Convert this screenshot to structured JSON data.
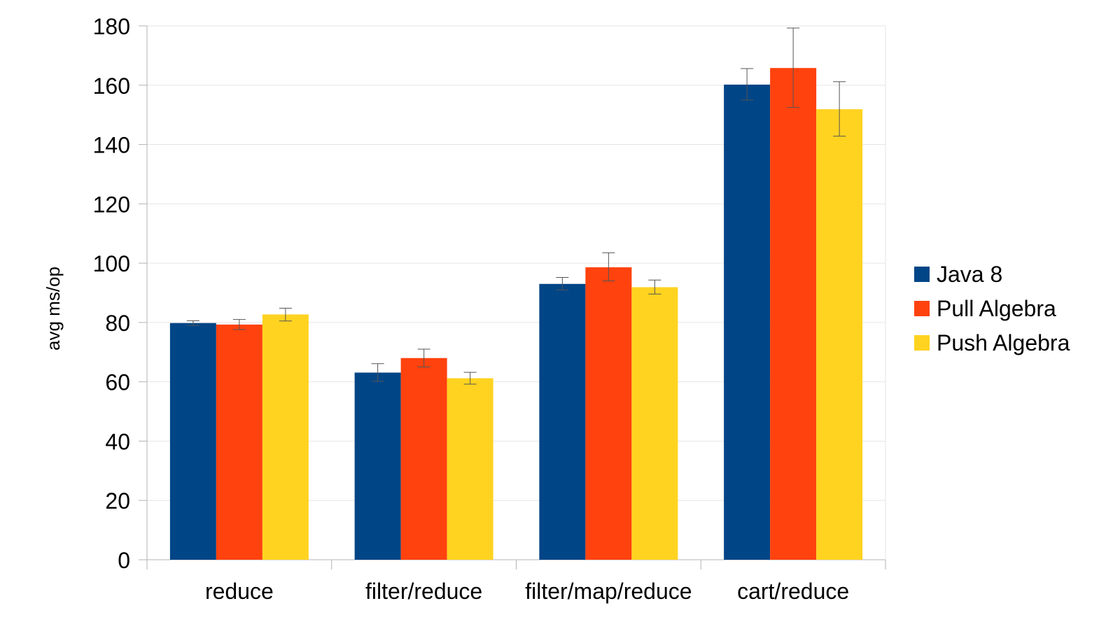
{
  "chart_data": {
    "type": "bar",
    "title": "",
    "xlabel": "",
    "ylabel": "avg ms/op",
    "ylim": [
      0,
      180
    ],
    "yticks": [
      "0",
      "20",
      "40",
      "60",
      "80",
      "100",
      "120",
      "140",
      "160",
      "180"
    ],
    "grid": true,
    "legend_position": "right",
    "categories": [
      "reduce",
      "filter/reduce",
      "filter/map/reduce",
      "cart/reduce"
    ],
    "series": [
      {
        "name": "Java 8",
        "color": "#004586",
        "values": [
          79.8,
          63.1,
          93.0,
          160.2
        ],
        "error_low": [
          79.0,
          60.2,
          91.0,
          155.0
        ],
        "error_high": [
          80.6,
          66.1,
          95.2,
          165.6
        ]
      },
      {
        "name": "Pull Algebra",
        "color": "#FF420E",
        "values": [
          79.3,
          68.0,
          98.6,
          165.8
        ],
        "error_low": [
          77.6,
          65.0,
          94.0,
          152.5
        ],
        "error_high": [
          81.0,
          71.0,
          103.5,
          179.3
        ]
      },
      {
        "name": "Push Algebra",
        "color": "#FFD320",
        "values": [
          82.7,
          61.2,
          91.9,
          151.9
        ],
        "error_low": [
          80.5,
          59.2,
          89.6,
          142.8
        ],
        "error_high": [
          84.8,
          63.2,
          94.3,
          161.2
        ]
      }
    ]
  }
}
